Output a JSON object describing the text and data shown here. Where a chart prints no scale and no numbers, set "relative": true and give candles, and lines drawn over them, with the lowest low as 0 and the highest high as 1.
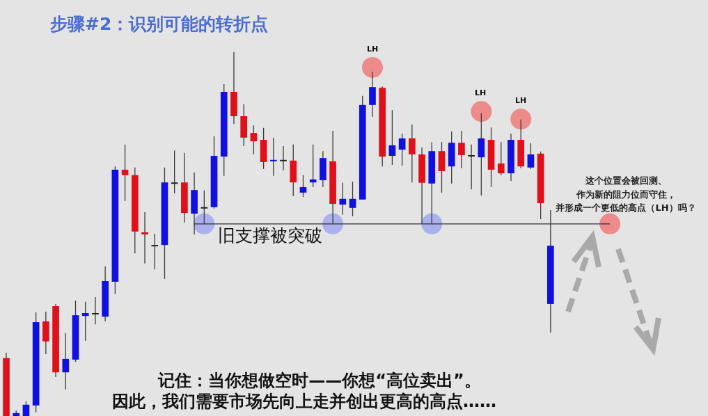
{
  "chart_data": {
    "type": "candlestick",
    "title": "步骤#2：识别可能的转折点",
    "relative": true,
    "categories": [
      null,
      null,
      null,
      null,
      null,
      null,
      null,
      null,
      null,
      null,
      null,
      null,
      null,
      null,
      null,
      null,
      null,
      null,
      null,
      null,
      null,
      null,
      null,
      null,
      null,
      null,
      null,
      null,
      null,
      null,
      null,
      null,
      null,
      null,
      null,
      null,
      null,
      null,
      null,
      null,
      null,
      null,
      null,
      null,
      null,
      null,
      null,
      null,
      null,
      null,
      null,
      null,
      null,
      null,
      null,
      null,
      null,
      null,
      null,
      null,
      null,
      null,
      null,
      null,
      null,
      null
    ],
    "ohlc": [
      [
        0.159,
        0.174,
        0,
        0
      ],
      [
        0,
        0.015,
        0,
        0.008
      ],
      [
        0,
        0.04,
        0,
        0.031
      ],
      [
        0.029,
        0.285,
        0.01,
        0.258
      ],
      [
        0.26,
        0.287,
        0.17,
        0.205
      ],
      [
        0.302,
        0.308,
        0.107,
        0.12
      ],
      [
        0.12,
        0.228,
        0.073,
        0.157
      ],
      [
        0.155,
        0.317,
        0.149,
        0.277
      ],
      [
        0.275,
        0.314,
        0.207,
        0.283
      ],
      [
        0.283,
        0.327,
        0.252,
        0.283
      ],
      [
        0.273,
        0.411,
        0.26,
        0.371
      ],
      [
        0.369,
        0.686,
        0.335,
        0.677
      ],
      [
        0.677,
        0.746,
        0.591,
        0.662
      ],
      [
        0.662,
        0.683,
        0.447,
        0.507
      ],
      [
        0.505,
        0.56,
        0.419,
        0.499
      ],
      [
        0.47,
        0.501,
        0.403,
        0.47
      ],
      [
        0.47,
        0.683,
        0.377,
        0.642
      ],
      [
        0.642,
        0.73,
        0.612,
        0.642
      ],
      [
        0.642,
        0.723,
        0.532,
        0.558
      ],
      [
        0.556,
        0.669,
        0.499,
        0.621
      ],
      [
        0.574,
        0.62,
        0.528,
        0.574
      ],
      [
        0.574,
        0.769,
        0.57,
        0.715
      ],
      [
        0.713,
        0.912,
        0.66,
        0.891
      ],
      [
        0.891,
        1,
        0.803,
        0.824
      ],
      [
        0.824,
        0.857,
        0.742,
        0.765
      ],
      [
        0.778,
        0.799,
        0.719,
        0.755
      ],
      [
        0.759,
        0.792,
        0.679,
        0.698
      ],
      [
        0.7,
        0.765,
        0.66,
        0.704
      ],
      [
        0.704,
        0.742,
        0.675,
        0.704
      ],
      [
        0.702,
        0.746,
        0.604,
        0.642
      ],
      [
        0.614,
        0.662,
        0.602,
        0.629
      ],
      [
        0.642,
        0.746,
        0.629,
        0.65
      ],
      [
        0.648,
        0.728,
        0.629,
        0.709
      ],
      [
        0.7,
        0.784,
        0.528,
        0.583
      ],
      [
        0.581,
        0.641,
        0.553,
        0.597
      ],
      [
        0.572,
        0.644,
        0.549,
        0.597
      ],
      [
        0.595,
        0.88,
        0.595,
        0.855
      ],
      [
        0.855,
        0.946,
        0.822,
        0.904
      ],
      [
        0.902,
        0.906,
        0.686,
        0.713
      ],
      [
        0.715,
        0.841,
        0.69,
        0.744
      ],
      [
        0.732,
        0.776,
        0.688,
        0.763
      ],
      [
        0.763,
        0.801,
        0.642,
        0.719
      ],
      [
        0.719,
        0.738,
        0.528,
        0.641
      ],
      [
        0.639,
        0.753,
        0.528,
        0.728
      ],
      [
        0.728,
        0.753,
        0.614,
        0.673
      ],
      [
        0.686,
        0.782,
        0.639,
        0.751
      ],
      [
        0.751,
        0.784,
        0.681,
        0.717
      ],
      [
        0.717,
        0.746,
        0.623,
        0.717
      ],
      [
        0.711,
        0.832,
        0.606,
        0.763
      ],
      [
        0.759,
        0.793,
        0.629,
        0.677
      ],
      [
        0.694,
        0.753,
        0.662,
        0.667
      ],
      [
        0.667,
        0.776,
        0.646,
        0.759
      ],
      [
        0.759,
        0.815,
        0.681,
        0.686
      ],
      [
        0.683,
        0.75,
        0.679,
        0.719
      ],
      [
        0.721,
        0.727,
        0.541,
        0.585
      ],
      [
        0.308,
        0.566,
        0.229,
        0.468
      ],
      null,
      null,
      null,
      null,
      null,
      null,
      null,
      null,
      null,
      null
    ],
    "colors": [
      "#e0101a",
      "#1010e0",
      "#1010e0",
      "#1010e0",
      "#e0101a",
      "#e0101a",
      "#1010e0",
      "#1010e0",
      "#1010e0",
      "#222222",
      "#1010e0",
      "#1010e0",
      "#e0101a",
      "#e0101a",
      "#e0101a",
      "#222222",
      "#1010e0",
      "#222222",
      "#e0101a",
      "#1010e0",
      "#222222",
      "#1010e0",
      "#1010e0",
      "#e0101a",
      "#e0101a",
      "#e0101a",
      "#e0101a",
      "#1010e0",
      "#222222",
      "#e0101a",
      "#1010e0",
      "#1010e0",
      "#1010e0",
      "#e0101a",
      "#1010e0",
      "#1010e0",
      "#1010e0",
      "#1010e0",
      "#e0101a",
      "#1010e0",
      "#1010e0",
      "#e0101a",
      "#e0101a",
      "#1010e0",
      "#e0101a",
      "#1010e0",
      "#e0101a",
      "#222222",
      "#1010e0",
      "#e0101a",
      "#e0101a",
      "#1010e0",
      "#e0101a",
      "#1010e0",
      "#e0101a",
      "#1010e0",
      null,
      null,
      null,
      null,
      null,
      null,
      null,
      null,
      null,
      null
    ],
    "series": [
      {
        "type": "scatter",
        "color": "#a0a8ee",
        "values": [
          null,
          null,
          null,
          null,
          null,
          null,
          null,
          null,
          null,
          null,
          null,
          null,
          null,
          null,
          null,
          null,
          null,
          null,
          null,
          null,
          0.528,
          null,
          null,
          null,
          null,
          null,
          null,
          null,
          null,
          null,
          null,
          null,
          null,
          0.528,
          null,
          null,
          null,
          null,
          null,
          null,
          null,
          null,
          null,
          0.528,
          null,
          null,
          null,
          null,
          null,
          null,
          null,
          null,
          null,
          null,
          null,
          null,
          null,
          null,
          null,
          null,
          null,
          null,
          null,
          null,
          null,
          null
        ]
      },
      {
        "type": "scatter",
        "color": "#ee7b7b",
        "values": [
          null,
          null,
          null,
          null,
          null,
          null,
          null,
          null,
          null,
          null,
          null,
          null,
          null,
          null,
          null,
          null,
          null,
          null,
          null,
          null,
          null,
          null,
          null,
          null,
          null,
          null,
          null,
          null,
          null,
          null,
          null,
          null,
          null,
          null,
          null,
          null,
          null,
          0.958,
          null,
          null,
          null,
          null,
          null,
          null,
          null,
          null,
          null,
          null,
          0.837,
          null,
          null,
          null,
          0.816,
          null,
          null,
          null,
          null,
          null,
          null,
          null,
          null,
          0.528,
          null,
          null,
          null,
          null
        ]
      }
    ],
    "ref_lines": [
      {
        "axis": "y",
        "value": 0.528,
        "label": "旧支撑被突破",
        "color": "#333333"
      }
    ],
    "annotations": [
      {
        "text": "LH",
        "y": 0.958
      },
      {
        "text": "LH",
        "y": 0.837
      },
      {
        "text": "LH",
        "y": 0.816
      },
      "这个位置会被回测、作为新的阻力位而守住，并形成一个更低的高点（LH）吗？",
      "记住：当你想做空时——你想“高位卖出”。",
      "因此，我们需要市场先向上走并创出更高的高点……"
    ]
  }
}
